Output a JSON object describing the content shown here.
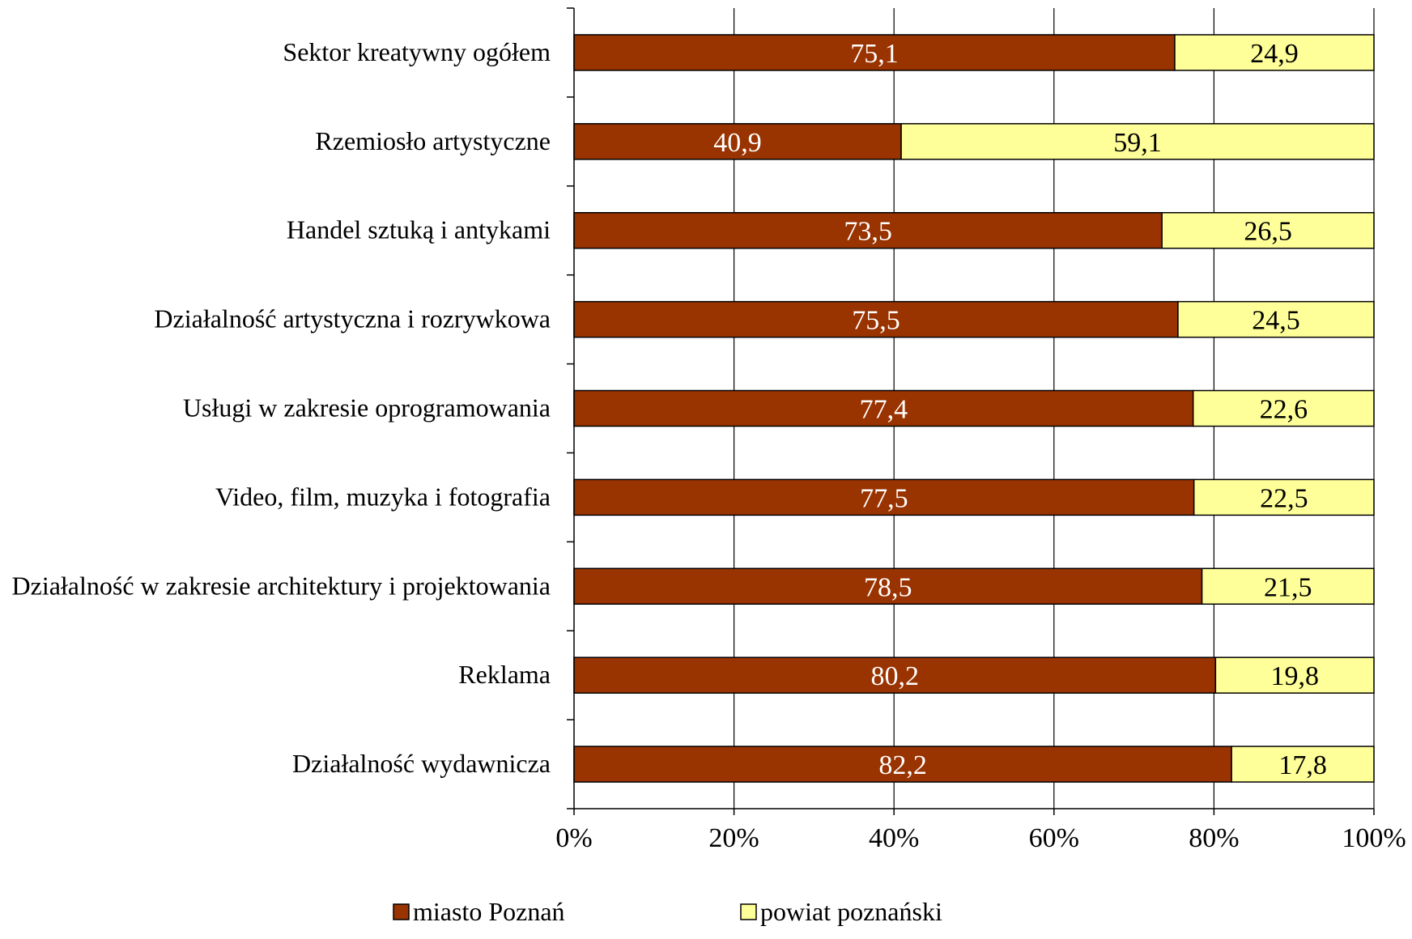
{
  "chart_data": {
    "type": "bar",
    "orientation": "horizontal",
    "stacked": true,
    "percent_stacked": true,
    "categories": [
      "Sektor kreatywny ogółem",
      "Rzemiosło artystyczne",
      "Handel sztuką i antykami",
      "Działalność artystyczna i rozrywkowa",
      "Usługi w zakresie oprogramowania",
      "Video, film, muzyka i fotografia",
      "Działalność w zakresie architektury i projektowania",
      "Reklama",
      "Działalność wydawnicza"
    ],
    "series": [
      {
        "name": "miasto Poznań",
        "color": "#993300",
        "label_color": "#ffffff",
        "values": [
          75.1,
          40.9,
          73.5,
          75.5,
          77.4,
          77.5,
          78.5,
          80.2,
          82.2
        ],
        "labels": [
          "75,1",
          "40,9",
          "73,5",
          "75,5",
          "77,4",
          "77,5",
          "78,5",
          "80,2",
          "82,2"
        ]
      },
      {
        "name": "powiat poznański",
        "color": "#ffff99",
        "label_color": "#000000",
        "values": [
          24.9,
          59.1,
          26.5,
          24.5,
          22.6,
          22.5,
          21.5,
          19.8,
          17.8
        ],
        "labels": [
          "24,9",
          "59,1",
          "26,5",
          "24,5",
          "22,6",
          "22,5",
          "21,5",
          "19,8",
          "17,8"
        ]
      }
    ],
    "xlim": [
      0,
      100
    ],
    "x_ticks": [
      0,
      20,
      40,
      60,
      80,
      100
    ],
    "x_tick_labels": [
      "0%",
      "20%",
      "40%",
      "60%",
      "80%",
      "100%"
    ],
    "grid": "vertical",
    "legend": {
      "position": "bottom",
      "items": [
        "miasto Poznań",
        "powiat poznański"
      ]
    }
  }
}
